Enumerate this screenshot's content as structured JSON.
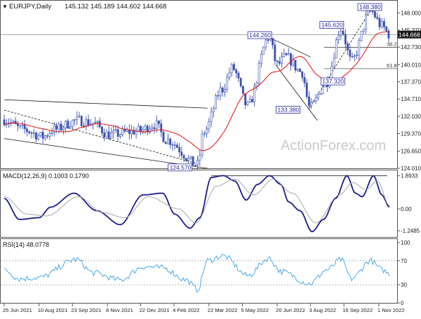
{
  "header": {
    "symbol": "EURJPY,Daily",
    "ohlc": "145.132 145.189 144.602 144.668"
  },
  "watermark": "ActionForex.com",
  "colors": {
    "candle_up": "#3a4fb0",
    "candle_down": "#3a4fb0",
    "ma": "#e02020",
    "macd": "#1c1c8c",
    "signal": "#a8a8a8",
    "rsi": "#3aa0e6",
    "trendline": "#111111",
    "label_box_border": "#2a2aa0",
    "label_text": "#2a2aa0",
    "price_box": "#1a1a1a"
  },
  "chart_data": [
    {
      "type": "candlestick",
      "title": "EURJPY,Daily",
      "y_ticks": [
        "148.000",
        "145.370",
        "142.730",
        "140.010",
        "137.370",
        "134.710",
        "132.030",
        "129.370",
        "126.650",
        "124.010"
      ],
      "ylim": [
        124.01,
        149.9
      ],
      "last_price": "144.668",
      "overlay": "moving average (red)",
      "anchors": [
        {
          "date": "2021-06-25",
          "close": 131.5
        },
        {
          "date": "2021-07-20",
          "close": 130.0
        },
        {
          "date": "2021-08-15",
          "close": 128.9
        },
        {
          "date": "2021-08-30",
          "close": 130.0
        },
        {
          "date": "2021-09-29",
          "close": 131.4
        },
        {
          "date": "2021-10-20",
          "close": 131.0
        },
        {
          "date": "2021-11-10",
          "close": 129.2
        },
        {
          "date": "2021-12-20",
          "close": 129.8
        },
        {
          "date": "2022-01-10",
          "close": 130.8
        },
        {
          "date": "2022-01-25",
          "close": 128.4
        },
        {
          "date": "2022-03-07",
          "close": 124.57
        },
        {
          "date": "2022-03-15",
          "close": 129.6
        },
        {
          "date": "2022-04-08",
          "close": 136.2
        },
        {
          "date": "2022-04-22",
          "close": 139.5
        },
        {
          "date": "2022-05-12",
          "close": 133.6
        },
        {
          "date": "2022-06-09",
          "close": 144.26
        },
        {
          "date": "2022-06-20",
          "close": 140.0
        },
        {
          "date": "2022-07-01",
          "close": 141.2
        },
        {
          "date": "2022-07-22",
          "close": 138.9
        },
        {
          "date": "2022-08-02",
          "close": 133.38
        },
        {
          "date": "2022-08-24",
          "close": 137.32
        },
        {
          "date": "2022-09-12",
          "close": 145.62
        },
        {
          "date": "2022-09-26",
          "close": 140.5
        },
        {
          "date": "2022-10-21",
          "close": 148.38
        },
        {
          "date": "2022-11-05",
          "close": 146.0
        },
        {
          "date": "2022-11-15",
          "close": 144.668
        }
      ],
      "annotations": [
        {
          "label": "148.380",
          "date": "2022-10-21",
          "price": 148.38
        },
        {
          "label": "145.620",
          "date": "2022-09-12",
          "price": 145.62
        },
        {
          "label": "144.260",
          "date": "2022-06-09",
          "price": 144.26
        },
        {
          "label": "137.320",
          "date": "2022-08-24",
          "price": 137.32
        },
        {
          "label": "133.380",
          "date": "2022-08-02",
          "price": 133.38
        },
        {
          "label": "124.570",
          "date": "2022-03-07",
          "price": 124.57
        }
      ],
      "fib_levels": [
        {
          "label": "38.2",
          "price": 142.7
        },
        {
          "label": "61.8",
          "price": 139.4
        }
      ],
      "reference_line": 144.668
    },
    {
      "type": "line",
      "title": "MACD(12,26,9) 0.1003 0.1790",
      "y_ticks": [
        "1.8933",
        "0.00",
        "-1.2485"
      ],
      "ylim": [
        -1.6,
        2.2
      ],
      "series": [
        {
          "name": "MACD",
          "points": [
            {
              "date": "2021-06-25",
              "value": 0.6
            },
            {
              "date": "2021-07-15",
              "value": -0.6
            },
            {
              "date": "2021-08-10",
              "value": -0.5
            },
            {
              "date": "2021-08-25",
              "value": 0.1
            },
            {
              "date": "2021-09-25",
              "value": 0.9
            },
            {
              "date": "2021-10-25",
              "value": -0.1
            },
            {
              "date": "2021-11-25",
              "value": -0.9
            },
            {
              "date": "2021-12-25",
              "value": 0.8
            },
            {
              "date": "2022-01-20",
              "value": 0.9
            },
            {
              "date": "2022-02-05",
              "value": -0.3
            },
            {
              "date": "2022-02-25",
              "value": -1.1
            },
            {
              "date": "2022-03-10",
              "value": -0.5
            },
            {
              "date": "2022-03-25",
              "value": 1.8
            },
            {
              "date": "2022-04-10",
              "value": 1.9
            },
            {
              "date": "2022-04-25",
              "value": 1.6
            },
            {
              "date": "2022-05-10",
              "value": 0.5
            },
            {
              "date": "2022-05-25",
              "value": 1.4
            },
            {
              "date": "2022-06-10",
              "value": 1.9
            },
            {
              "date": "2022-06-25",
              "value": 1.4
            },
            {
              "date": "2022-07-05",
              "value": 0.4
            },
            {
              "date": "2022-07-20",
              "value": -0.1
            },
            {
              "date": "2022-08-05",
              "value": -1.3
            },
            {
              "date": "2022-08-20",
              "value": -0.6
            },
            {
              "date": "2022-09-05",
              "value": 0.6
            },
            {
              "date": "2022-09-20",
              "value": 1.9
            },
            {
              "date": "2022-10-01",
              "value": 0.9
            },
            {
              "date": "2022-10-10",
              "value": 0.7
            },
            {
              "date": "2022-10-25",
              "value": 1.9
            },
            {
              "date": "2022-11-05",
              "value": 0.8
            },
            {
              "date": "2022-11-15",
              "value": 0.1
            }
          ]
        },
        {
          "name": "Signal",
          "points": [
            {
              "date": "2021-06-25",
              "value": 0.7
            },
            {
              "date": "2021-07-25",
              "value": -0.3
            },
            {
              "date": "2021-08-20",
              "value": -0.4
            },
            {
              "date": "2021-10-01",
              "value": 0.7
            },
            {
              "date": "2021-11-01",
              "value": -0.2
            },
            {
              "date": "2021-12-01",
              "value": -0.5
            },
            {
              "date": "2022-01-01",
              "value": 0.7
            },
            {
              "date": "2022-02-10",
              "value": 0.0
            },
            {
              "date": "2022-03-05",
              "value": -0.8
            },
            {
              "date": "2022-04-01",
              "value": 1.3
            },
            {
              "date": "2022-04-25",
              "value": 1.7
            },
            {
              "date": "2022-05-20",
              "value": 0.8
            },
            {
              "date": "2022-06-15",
              "value": 1.7
            },
            {
              "date": "2022-07-10",
              "value": 0.9
            },
            {
              "date": "2022-08-10",
              "value": -0.8
            },
            {
              "date": "2022-09-10",
              "value": 0.8
            },
            {
              "date": "2022-09-28",
              "value": 1.5
            },
            {
              "date": "2022-10-15",
              "value": 1.1
            },
            {
              "date": "2022-10-30",
              "value": 1.6
            },
            {
              "date": "2022-11-15",
              "value": 0.2
            }
          ]
        }
      ],
      "reference_line": 1.8933
    },
    {
      "type": "line",
      "title": "RSI(14) 48.0778",
      "y_ticks": [
        "100",
        "70",
        "30",
        "0"
      ],
      "ylim": [
        0,
        100
      ],
      "series": [
        {
          "name": "RSI",
          "points": [
            {
              "date": "2021-06-25",
              "value": 55
            },
            {
              "date": "2021-07-15",
              "value": 40
            },
            {
              "date": "2021-08-10",
              "value": 42
            },
            {
              "date": "2021-09-28",
              "value": 72
            },
            {
              "date": "2021-10-20",
              "value": 50
            },
            {
              "date": "2021-11-25",
              "value": 38
            },
            {
              "date": "2021-12-25",
              "value": 60
            },
            {
              "date": "2022-01-20",
              "value": 58
            },
            {
              "date": "2022-02-20",
              "value": 38
            },
            {
              "date": "2022-03-07",
              "value": 22
            },
            {
              "date": "2022-03-20",
              "value": 70
            },
            {
              "date": "2022-04-10",
              "value": 78
            },
            {
              "date": "2022-05-12",
              "value": 45
            },
            {
              "date": "2022-06-09",
              "value": 74
            },
            {
              "date": "2022-06-25",
              "value": 52
            },
            {
              "date": "2022-08-02",
              "value": 32
            },
            {
              "date": "2022-08-25",
              "value": 55
            },
            {
              "date": "2022-09-12",
              "value": 72
            },
            {
              "date": "2022-09-26",
              "value": 40
            },
            {
              "date": "2022-10-21",
              "value": 70
            },
            {
              "date": "2022-11-05",
              "value": 55
            },
            {
              "date": "2022-11-15",
              "value": 48
            }
          ]
        }
      ]
    }
  ],
  "x_axis": {
    "ticks": [
      {
        "label": "25 Jun 2021",
        "date": "2021-06-25"
      },
      {
        "label": "10 Aug 2021",
        "date": "2021-08-10"
      },
      {
        "label": "23 Sep 2021",
        "date": "2021-09-23"
      },
      {
        "label": "8 Nov 2021",
        "date": "2021-11-08"
      },
      {
        "label": "22 Dec 2021",
        "date": "2021-12-22"
      },
      {
        "label": "4 Feb 2022",
        "date": "2022-02-04"
      },
      {
        "label": "22 Mar 2022",
        "date": "2022-03-22"
      },
      {
        "label": "5 May 2022",
        "date": "2022-05-05"
      },
      {
        "label": "20 Jun 2022",
        "date": "2022-06-20"
      },
      {
        "label": "3 Aug 2022",
        "date": "2022-08-03"
      },
      {
        "label": "16 Sep 2022",
        "date": "2022-09-16"
      },
      {
        "label": "1 Nov 2022",
        "date": "2022-11-01"
      }
    ]
  }
}
